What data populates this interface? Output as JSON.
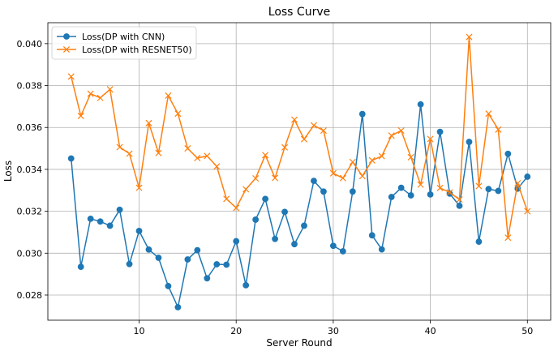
{
  "chart_data": {
    "type": "line",
    "title": "Loss Curve",
    "xlabel": "Server Round",
    "ylabel": "Loss",
    "xlim": [
      0.6,
      52.4
    ],
    "ylim": [
      0.0268,
      0.041
    ],
    "xticks": [
      10,
      20,
      30,
      40,
      50
    ],
    "xtick_labels": [
      "10",
      "20",
      "30",
      "40",
      "50"
    ],
    "yticks": [
      0.028,
      0.03,
      0.032,
      0.034,
      0.036,
      0.038,
      0.04
    ],
    "ytick_labels": [
      "0.028",
      "0.030",
      "0.032",
      "0.034",
      "0.036",
      "0.038",
      "0.040"
    ],
    "grid": true,
    "legend_position": "upper-left",
    "x": [
      3,
      4,
      5,
      6,
      7,
      8,
      9,
      10,
      11,
      12,
      13,
      14,
      15,
      16,
      17,
      18,
      19,
      20,
      21,
      22,
      23,
      24,
      25,
      26,
      27,
      28,
      29,
      30,
      31,
      32,
      33,
      34,
      35,
      36,
      37,
      38,
      39,
      40,
      41,
      42,
      43,
      44,
      45,
      46,
      47,
      48,
      49,
      50
    ],
    "series": [
      {
        "name": "Loss(DP with CNN)",
        "color": "#1f77b4",
        "marker": "circle",
        "values": [
          0.03452,
          0.02935,
          0.03164,
          0.03151,
          0.03131,
          0.03207,
          0.02948,
          0.03106,
          0.03017,
          0.02978,
          0.02843,
          0.02742,
          0.0297,
          0.03014,
          0.0288,
          0.02947,
          0.02945,
          0.03057,
          0.02847,
          0.0316,
          0.03259,
          0.03068,
          0.03197,
          0.03043,
          0.03131,
          0.03345,
          0.03294,
          0.03035,
          0.03009,
          0.03294,
          0.03664,
          0.03085,
          0.03018,
          0.03268,
          0.03312,
          0.03276,
          0.0371,
          0.0328,
          0.03579,
          0.03284,
          0.03226,
          0.03531,
          0.03055,
          0.03306,
          0.03297,
          0.03474,
          0.03308,
          0.03365
        ]
      },
      {
        "name": "Loss(DP with RESNET50)",
        "color": "#ff7f0e",
        "marker": "x",
        "values": [
          0.03843,
          0.03655,
          0.03761,
          0.03741,
          0.03782,
          0.03506,
          0.03475,
          0.03312,
          0.03621,
          0.03478,
          0.03752,
          0.03666,
          0.035,
          0.03454,
          0.03464,
          0.03414,
          0.03259,
          0.03216,
          0.03305,
          0.03357,
          0.03468,
          0.03359,
          0.03505,
          0.03637,
          0.03544,
          0.0361,
          0.03585,
          0.03381,
          0.03358,
          0.03435,
          0.03368,
          0.03443,
          0.03463,
          0.03561,
          0.03585,
          0.03458,
          0.03327,
          0.03545,
          0.03311,
          0.0329,
          0.03256,
          0.04032,
          0.0332,
          0.03666,
          0.0359,
          0.03074,
          0.03334,
          0.032
        ]
      }
    ]
  }
}
